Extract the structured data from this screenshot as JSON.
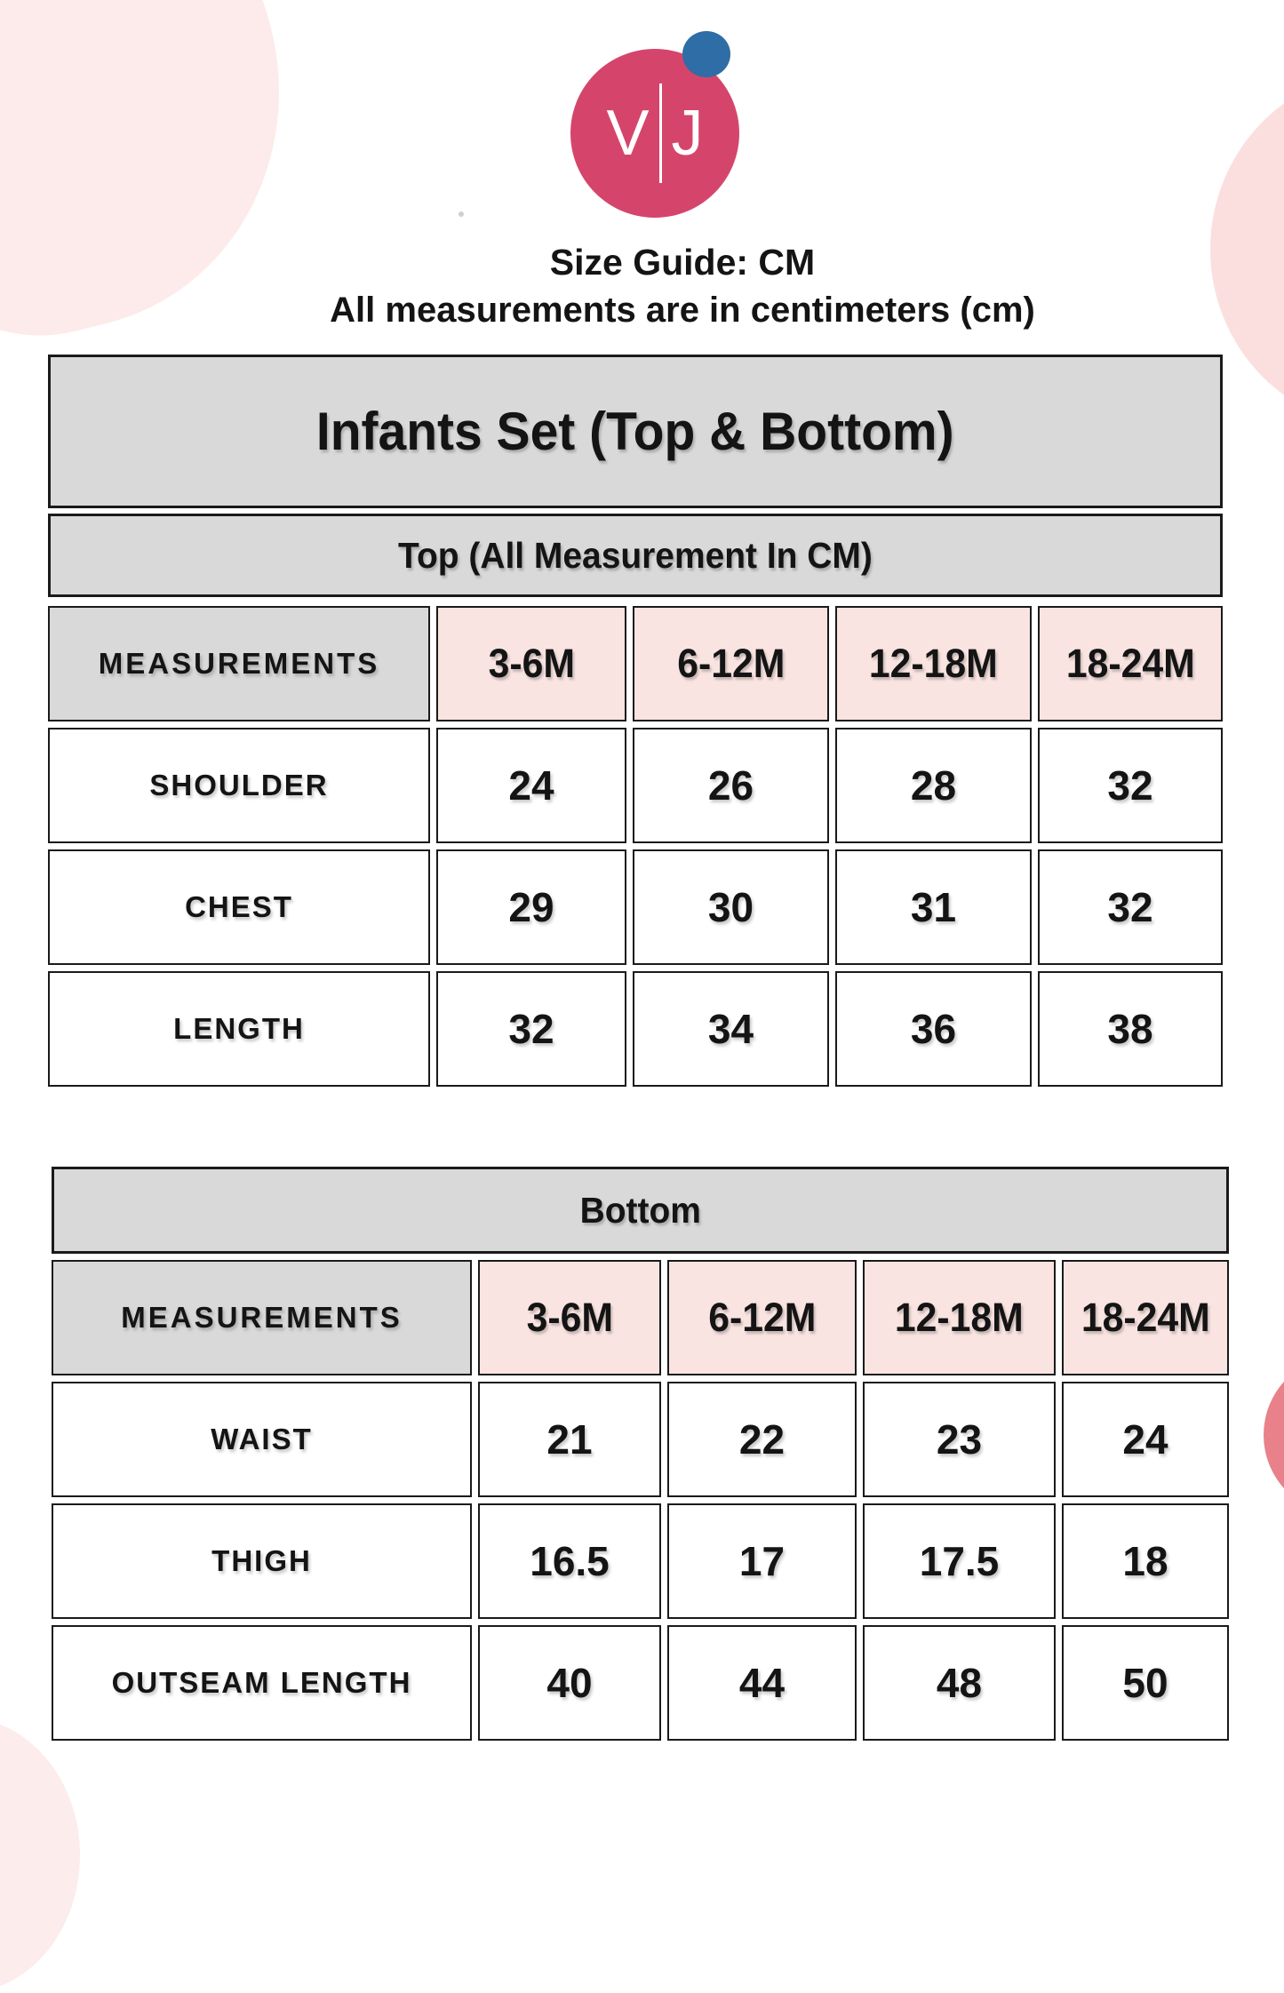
{
  "logo": {
    "letter_left": "V",
    "letter_right": "J",
    "circle_color": "#d5456b",
    "dot_color": "#2e6da6"
  },
  "intro": {
    "title": "Size Guide: CM",
    "subtitle": "All measurements are in centimeters (cm)"
  },
  "sections": {
    "main_title": "Infants Set (Top & Bottom)",
    "top_caption": "Top (All Measurement In CM)",
    "bottom_caption": "Bottom"
  },
  "top_table": {
    "header": [
      "MEASUREMENTS",
      "3-6M",
      "6-12M",
      "12-18M",
      "18-24M"
    ],
    "rows": [
      {
        "label": "SHOULDER",
        "values": [
          "24",
          "26",
          "28",
          "32"
        ]
      },
      {
        "label": "CHEST",
        "values": [
          "29",
          "30",
          "31",
          "32"
        ]
      },
      {
        "label": "LENGTH",
        "values": [
          "32",
          "34",
          "36",
          "38"
        ]
      }
    ]
  },
  "bottom_table": {
    "header": [
      "MEASUREMENTS",
      "3-6M",
      "6-12M",
      "12-18M",
      "18-24M"
    ],
    "rows": [
      {
        "label": "WAIST",
        "values": [
          "21",
          "22",
          "23",
          "24"
        ]
      },
      {
        "label": "THIGH",
        "values": [
          "16.5",
          "17",
          "17.5",
          "18"
        ]
      },
      {
        "label": "OUTSEAM LENGTH",
        "values": [
          "40",
          "44",
          "48",
          "50"
        ]
      }
    ]
  },
  "colors": {
    "bar_gray": "#d9d9d9",
    "cell_pink": "#f9e4e1",
    "cell_white": "#ffffff",
    "border_black": "#1a1a1a",
    "blob_soft_pink": "#fcebea",
    "blob_top_right_pink": "#fbdfdf",
    "blob_salmon": "#e8818a",
    "text_black": "#141414"
  }
}
